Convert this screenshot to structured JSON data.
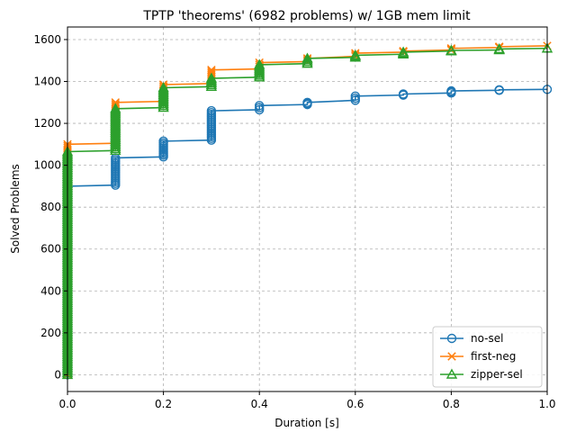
{
  "chart_data": {
    "type": "line",
    "title": "TPTP 'theorems' (6982 problems) w/ 1GB mem limit",
    "xlabel": "Duration [s]",
    "ylabel": "Solved Problems",
    "xlim": [
      0,
      1.0
    ],
    "ylim": [
      -80,
      1660
    ],
    "xticks": [
      0.0,
      0.2,
      0.4,
      0.6,
      0.8,
      1.0
    ],
    "xtick_labels": [
      "0.0",
      "0.2",
      "0.4",
      "0.6",
      "0.8",
      "1.0"
    ],
    "yticks": [
      0,
      200,
      400,
      600,
      800,
      1000,
      1200,
      1400,
      1600
    ],
    "ytick_labels": [
      "0",
      "200",
      "400",
      "600",
      "800",
      "1000",
      "1200",
      "1400",
      "1600"
    ],
    "grid": true,
    "legend_position": "lower-right",
    "series": [
      {
        "name": "no-sel",
        "color": "#1f77b4",
        "marker": "circle",
        "points": [
          [
            0.0,
            0
          ],
          [
            0.0,
            900
          ],
          [
            0.1,
            905
          ],
          [
            0.1,
            1035
          ],
          [
            0.2,
            1040
          ],
          [
            0.2,
            1115
          ],
          [
            0.3,
            1120
          ],
          [
            0.3,
            1260
          ],
          [
            0.4,
            1265
          ],
          [
            0.4,
            1285
          ],
          [
            0.5,
            1290
          ],
          [
            0.5,
            1300
          ],
          [
            0.6,
            1310
          ],
          [
            0.6,
            1330
          ],
          [
            0.7,
            1335
          ],
          [
            0.7,
            1340
          ],
          [
            0.8,
            1345
          ],
          [
            0.8,
            1355
          ],
          [
            0.9,
            1358
          ],
          [
            0.9,
            1360
          ],
          [
            1.0,
            1362
          ]
        ]
      },
      {
        "name": "first-neg",
        "color": "#ff7f0e",
        "marker": "x",
        "points": [
          [
            0.0,
            0
          ],
          [
            0.0,
            1100
          ],
          [
            0.1,
            1105
          ],
          [
            0.1,
            1300
          ],
          [
            0.2,
            1305
          ],
          [
            0.2,
            1385
          ],
          [
            0.3,
            1390
          ],
          [
            0.3,
            1455
          ],
          [
            0.4,
            1460
          ],
          [
            0.4,
            1490
          ],
          [
            0.5,
            1495
          ],
          [
            0.5,
            1510
          ],
          [
            0.6,
            1520
          ],
          [
            0.6,
            1535
          ],
          [
            0.7,
            1540
          ],
          [
            0.7,
            1545
          ],
          [
            0.8,
            1550
          ],
          [
            0.8,
            1558
          ],
          [
            0.9,
            1562
          ],
          [
            0.9,
            1566
          ],
          [
            1.0,
            1570
          ]
        ]
      },
      {
        "name": "zipper-sel",
        "color": "#2ca02c",
        "marker": "triangle",
        "points": [
          [
            0.0,
            0
          ],
          [
            0.0,
            1065
          ],
          [
            0.1,
            1070
          ],
          [
            0.1,
            1270
          ],
          [
            0.2,
            1275
          ],
          [
            0.2,
            1370
          ],
          [
            0.3,
            1375
          ],
          [
            0.3,
            1415
          ],
          [
            0.4,
            1420
          ],
          [
            0.4,
            1480
          ],
          [
            0.5,
            1485
          ],
          [
            0.5,
            1510
          ],
          [
            0.6,
            1515
          ],
          [
            0.6,
            1525
          ],
          [
            0.7,
            1530
          ],
          [
            0.7,
            1540
          ],
          [
            0.8,
            1545
          ],
          [
            0.8,
            1548
          ],
          [
            0.9,
            1550
          ],
          [
            0.9,
            1555
          ],
          [
            1.0,
            1558
          ]
        ]
      }
    ]
  }
}
